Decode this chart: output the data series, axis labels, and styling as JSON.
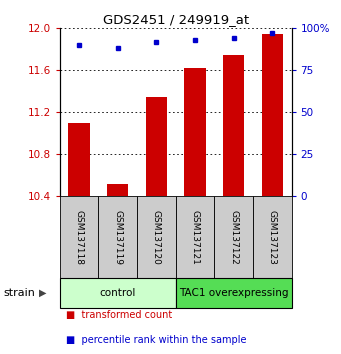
{
  "title": "GDS2451 / 249919_at",
  "samples": [
    "GSM137118",
    "GSM137119",
    "GSM137120",
    "GSM137121",
    "GSM137122",
    "GSM137123"
  ],
  "red_values": [
    11.1,
    10.52,
    11.35,
    11.62,
    11.75,
    11.95
  ],
  "blue_values": [
    90,
    88,
    92,
    93,
    94,
    97
  ],
  "ylim_left": [
    10.4,
    12.0
  ],
  "ylim_right": [
    0,
    100
  ],
  "yticks_left": [
    10.4,
    10.8,
    11.2,
    11.6,
    12.0
  ],
  "yticks_right": [
    0,
    25,
    50,
    75,
    100
  ],
  "ytick_labels_right": [
    "0",
    "25",
    "50",
    "75",
    "100%"
  ],
  "bar_color": "#cc0000",
  "dot_color": "#0000cc",
  "groups": [
    {
      "label": "control",
      "indices": [
        0,
        1,
        2
      ],
      "color": "#ccffcc"
    },
    {
      "label": "TAC1 overexpressing",
      "indices": [
        3,
        4,
        5
      ],
      "color": "#55dd55"
    }
  ],
  "group_label": "strain",
  "legend_items": [
    {
      "color": "#cc0000",
      "label": "transformed count"
    },
    {
      "color": "#0000cc",
      "label": "percentile rank within the sample"
    }
  ],
  "bg_color": "#ffffff",
  "tick_label_color_left": "#cc0000",
  "tick_label_color_right": "#0000cc",
  "sample_box_color": "#cccccc"
}
